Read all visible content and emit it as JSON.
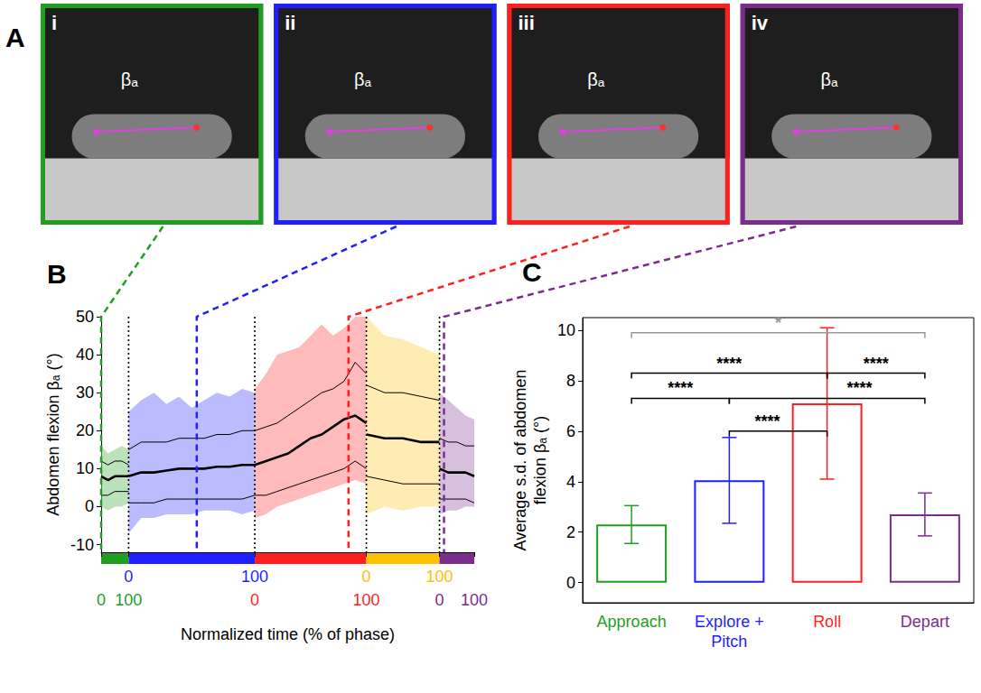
{
  "panel_a": {
    "panel_label": "A",
    "frames": [
      {
        "label": "i",
        "color": "#1f9e1f",
        "angle_label": "βₐ"
      },
      {
        "label": "ii",
        "color": "#1f1fff",
        "angle_label": "βₐ"
      },
      {
        "label": "iii",
        "color": "#ff1f1f",
        "angle_label": "βₐ"
      },
      {
        "label": "iv",
        "color": "#7b2d8e",
        "angle_label": "βₐ"
      }
    ]
  },
  "chart_data": [
    {
      "type": "line",
      "panel_label": "B",
      "ylabel": "Abdomen flexion βₐ (°)",
      "xlabel": "Normalized time (% of phase)",
      "ylim": [
        -12,
        50
      ],
      "yticks": [
        -10,
        0,
        10,
        20,
        30,
        40,
        50
      ],
      "xlim": [
        0,
        100
      ],
      "xticks": [
        0,
        100
      ],
      "phases": [
        {
          "color": "#1f9e1f",
          "x": [
            0,
            25,
            50,
            75,
            100
          ],
          "mean": [
            8,
            7,
            8,
            8,
            8
          ],
          "sd_upper": [
            12,
            11,
            12,
            12,
            11
          ],
          "sd_lower": [
            3,
            3,
            4,
            4,
            4
          ],
          "trace_max": [
            16,
            14,
            15,
            16,
            15
          ],
          "trace_min": [
            0,
            -1,
            0,
            0,
            1
          ]
        },
        {
          "color": "#1f1fff",
          "x": [
            0,
            10,
            20,
            30,
            40,
            50,
            60,
            70,
            80,
            90,
            100
          ],
          "mean": [
            8,
            9,
            9,
            9.5,
            10,
            10,
            10,
            10.5,
            10.5,
            11,
            11
          ],
          "sd_upper": [
            15,
            17,
            17,
            17,
            18,
            18,
            18,
            19,
            19,
            20,
            20
          ],
          "sd_lower": [
            1,
            1,
            1,
            2,
            2,
            2,
            2,
            2,
            2,
            2,
            3
          ],
          "trace_max": [
            25,
            28,
            30,
            27,
            29,
            26,
            28,
            30,
            29,
            31,
            30
          ],
          "trace_min": [
            -7,
            -3,
            -3,
            -2,
            -2,
            -2,
            -1,
            -1,
            -1,
            -2,
            -1
          ]
        },
        {
          "color": "#ff1f1f",
          "x": [
            0,
            10,
            20,
            30,
            40,
            50,
            60,
            70,
            80,
            90,
            100
          ],
          "mean": [
            11,
            12,
            13,
            14,
            16,
            18,
            19,
            21,
            23,
            24,
            22
          ],
          "sd_upper": [
            20,
            21,
            22,
            24,
            26,
            28,
            30,
            31,
            33,
            38,
            35
          ],
          "sd_lower": [
            3,
            3,
            4,
            5,
            6,
            7,
            8,
            9,
            10,
            12,
            10
          ],
          "trace_max": [
            31,
            35,
            40,
            41,
            42,
            45,
            48,
            45,
            47,
            50,
            50
          ],
          "trace_min": [
            -3,
            -2,
            0,
            1,
            2,
            3,
            4,
            5,
            6,
            7,
            6
          ]
        },
        {
          "color": "#ffc000",
          "x": [
            0,
            25,
            50,
            75,
            100
          ],
          "mean": [
            19,
            18,
            18,
            17,
            17
          ],
          "sd_upper": [
            32,
            30,
            30,
            29,
            28
          ],
          "sd_lower": [
            8,
            7,
            6,
            6,
            6
          ],
          "trace_max": [
            50,
            45,
            44,
            42,
            40
          ],
          "trace_min": [
            -2,
            0,
            -1,
            0,
            0
          ]
        },
        {
          "color": "#7b2d8e",
          "x": [
            0,
            25,
            50,
            75,
            100
          ],
          "mean": [
            10,
            9,
            9,
            9,
            8
          ],
          "sd_upper": [
            18,
            17,
            17,
            16,
            16
          ],
          "sd_lower": [
            2,
            2,
            2,
            2,
            1
          ],
          "trace_max": [
            30,
            28,
            26,
            24,
            23
          ],
          "trace_min": [
            -2,
            -1,
            -1,
            0,
            0
          ]
        }
      ],
      "snapshots": [
        {
          "label": "i",
          "phase": 0,
          "x": 0
        },
        {
          "label": "ii",
          "phase": 1,
          "x": 54
        },
        {
          "label": "iii",
          "phase": 2,
          "x": 84
        },
        {
          "label": "iv",
          "phase": 4,
          "x": 13
        }
      ]
    },
    {
      "type": "bar",
      "panel_label": "C",
      "ylabel": "Average s.d. of abdomen flexion βₐ (°)",
      "categories": [
        "Approach",
        "Explore + Pitch",
        "Roll",
        "Depart"
      ],
      "values": [
        2.3,
        4.05,
        7.1,
        2.7
      ],
      "errors": [
        0.75,
        1.7,
        3.0,
        0.85
      ],
      "colors": [
        "#1f9e1f",
        "#1f1fff",
        "#ff1f1f",
        "#7b2d8e"
      ],
      "ylim": [
        -0.8,
        10.5
      ],
      "yticks": [
        0,
        2,
        4,
        6,
        8,
        10
      ],
      "comparisons": [
        {
          "pair": [
            "Approach",
            "Depart"
          ],
          "label": "*",
          "y": 9.9,
          "color": "#999999"
        },
        {
          "pair": [
            "Approach",
            "Roll"
          ],
          "label": "****",
          "y": 8.3,
          "color": "#000000"
        },
        {
          "pair": [
            "Roll",
            "Depart"
          ],
          "label": "****",
          "y": 8.3,
          "color": "#000000"
        },
        {
          "pair": [
            "Approach",
            "Explore + Pitch"
          ],
          "label": "****",
          "y": 7.3,
          "color": "#000000"
        },
        {
          "pair": [
            "Explore + Pitch",
            "Depart"
          ],
          "label": "****",
          "y": 7.3,
          "color": "#000000"
        },
        {
          "pair": [
            "Explore + Pitch",
            "Roll"
          ],
          "label": "****",
          "y": 6.0,
          "color": "#000000"
        }
      ]
    }
  ]
}
